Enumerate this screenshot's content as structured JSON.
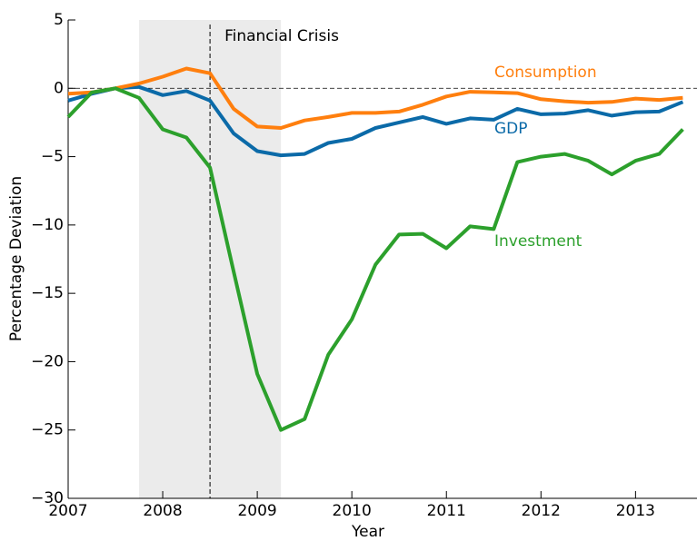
{
  "chart_data": {
    "type": "line",
    "xlabel": "Year",
    "ylabel": "Percentage Deviation",
    "x": [
      2007,
      2007.25,
      2007.5,
      2007.75,
      2008,
      2008.25,
      2008.5,
      2008.75,
      2009,
      2009.25,
      2009.5,
      2009.75,
      2010,
      2010.25,
      2010.5,
      2010.75,
      2011,
      2011.25,
      2011.5,
      2011.75,
      2012,
      2012.25,
      2012.5,
      2012.75,
      2013,
      2013.25,
      2013.5
    ],
    "series": [
      {
        "name": "GDP",
        "color": "#0b6aa8",
        "values": [
          -0.9,
          -0.4,
          0,
          0.1,
          -0.5,
          -0.2,
          -0.9,
          -3.3,
          -4.6,
          -4.9,
          -4.8,
          -4.0,
          -3.7,
          -2.9,
          -2.5,
          -2.1,
          -2.6,
          -2.2,
          -2.3,
          -1.5,
          -1.9,
          -1.85,
          -1.6,
          -2.0,
          -1.75,
          -1.7,
          -1.0
        ]
      },
      {
        "name": "Consumption",
        "color": "#ff7f0e",
        "values": [
          -0.4,
          -0.3,
          0,
          0.35,
          0.85,
          1.45,
          1.1,
          -1.5,
          -2.8,
          -2.9,
          -2.35,
          -2.1,
          -1.8,
          -1.8,
          -1.7,
          -1.2,
          -0.6,
          -0.25,
          -0.3,
          -0.35,
          -0.8,
          -0.95,
          -1.05,
          -1.0,
          -0.75,
          -0.85,
          -0.7
        ]
      },
      {
        "name": "Investment",
        "color": "#2ca02c",
        "values": [
          -2.1,
          -0.3,
          0,
          -0.7,
          -3.0,
          -3.6,
          -5.8,
          -13.4,
          -20.9,
          -25.0,
          -24.2,
          -19.5,
          -16.9,
          -12.9,
          -10.7,
          -10.65,
          -11.7,
          -10.1,
          -10.3,
          -5.4,
          -5.0,
          -4.8,
          -5.3,
          -6.3,
          -5.3,
          -4.8,
          -3.0
        ]
      }
    ],
    "xlim": [
      2007,
      2013.65
    ],
    "xticks": [
      2007,
      2008,
      2009,
      2010,
      2011,
      2012,
      2013
    ],
    "ylim": [
      -30,
      5
    ],
    "yticks": [
      {
        "value": -30,
        "label": "−30"
      },
      {
        "value": -25,
        "label": "−25"
      },
      {
        "value": -20,
        "label": "−20"
      },
      {
        "value": -15,
        "label": "−15"
      },
      {
        "value": -10,
        "label": "−10"
      },
      {
        "value": -5,
        "label": "−5"
      },
      0,
      5
    ],
    "shaded_region": [
      2007.75,
      2009.25
    ],
    "event_x": 2008.5,
    "event_label": "Financial Crisis",
    "reference_y": 0
  }
}
